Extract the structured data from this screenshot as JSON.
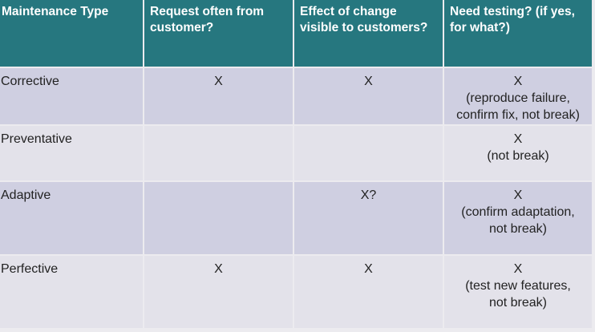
{
  "table": {
    "headers": [
      "Maintenance Type",
      "Request often from customer?",
      "Effect of change visible to customers?",
      "Need testing? (if yes, for what?)"
    ],
    "rows": [
      {
        "type": "Corrective",
        "request": "X",
        "visible": "X",
        "testing_mark": "X",
        "testing_detail": [
          "(reproduce failure,",
          "confirm fix, not break)"
        ]
      },
      {
        "type": "Preventative",
        "request": "",
        "visible": "",
        "testing_mark": "X",
        "testing_detail": [
          "(not break)"
        ]
      },
      {
        "type": "Adaptive",
        "request": "",
        "visible": "X?",
        "testing_mark": "X",
        "testing_detail": [
          "(confirm adaptation,",
          "not break)"
        ]
      },
      {
        "type": "Perfective",
        "request": "X",
        "visible": "X",
        "testing_mark": "X",
        "testing_detail": [
          "(test new features,",
          "not break)"
        ]
      }
    ]
  },
  "colors": {
    "header_bg": "#26777f",
    "row_odd_bg": "#cfcfe1",
    "row_even_bg": "#e3e2ea"
  }
}
